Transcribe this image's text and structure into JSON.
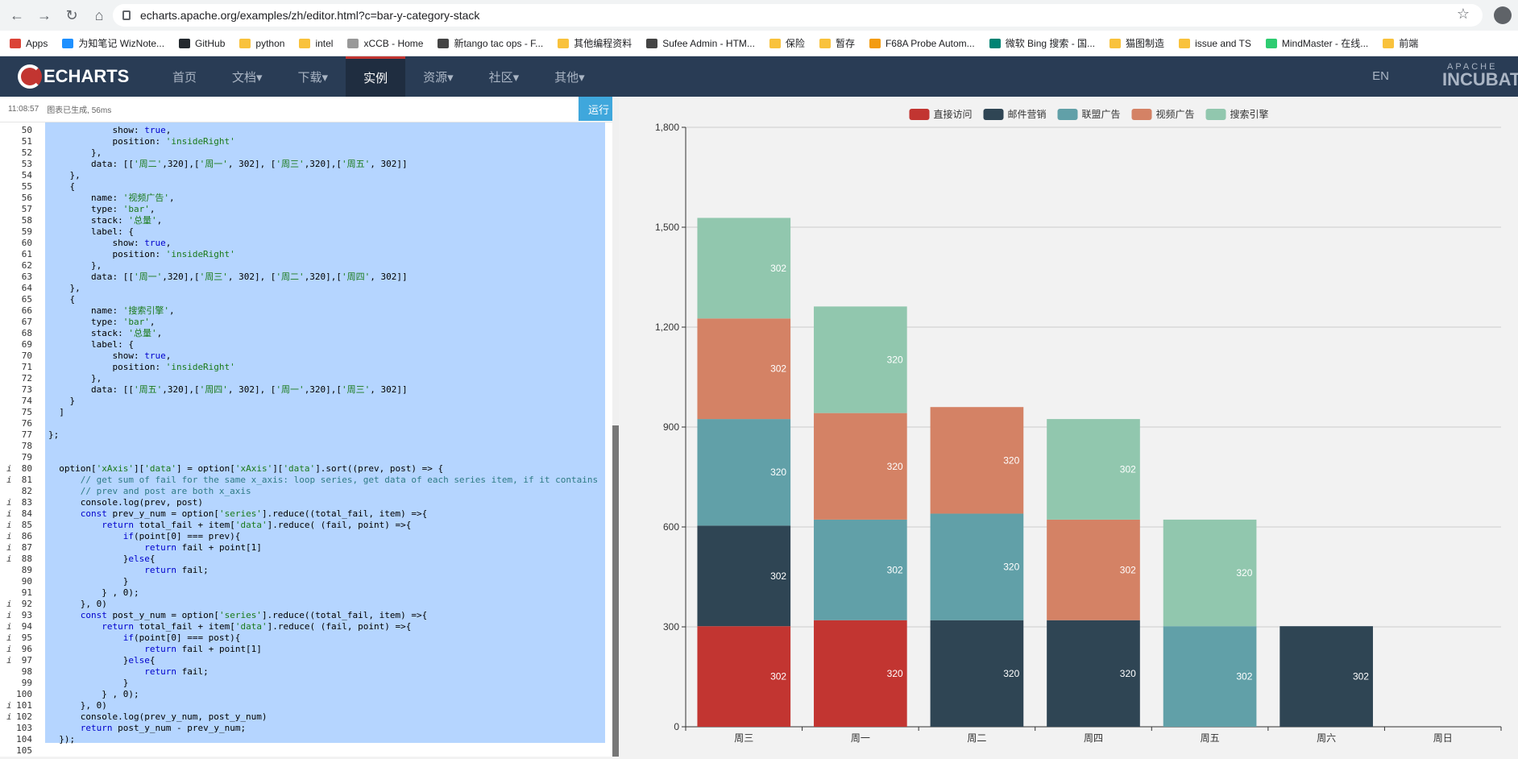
{
  "browser": {
    "url": "echarts.apache.org/examples/zh/editor.html?c=bar-y-category-stack",
    "bookmarks": [
      "Apps",
      "为知笔记 WizNote...",
      "GitHub",
      "python",
      "intel",
      "xCCB - Home",
      "新tango tac ops - F...",
      "其他编程资料",
      "Sufee Admin - HTM...",
      "保险",
      "暂存",
      "F68A Probe Autom...",
      "微软 Bing 搜索 - 国...",
      "猫图制造",
      "issue and TS",
      "MindMaster - 在线...",
      "前端"
    ]
  },
  "site_nav": {
    "logo": "ECHARTS",
    "items": [
      "首页",
      "文档▾",
      "下载▾",
      "实例",
      "资源▾",
      "社区▾",
      "其他▾"
    ],
    "lang": "EN",
    "brand": "INCUBATO",
    "brand_top": "APACHE"
  },
  "editor": {
    "time": "11:08:57",
    "status": "图表已生成, 56ms",
    "run_label": "运行",
    "code_lines": [
      {
        "n": 50,
        "t": "            show: true,"
      },
      {
        "n": 51,
        "t": "            position: 'insideRight'"
      },
      {
        "n": 52,
        "t": "        },"
      },
      {
        "n": 53,
        "t": "        data: [['周二',320],['周一', 302], ['周三',320],['周五', 302]]"
      },
      {
        "n": 54,
        "t": "    },"
      },
      {
        "n": 55,
        "t": "    {"
      },
      {
        "n": 56,
        "t": "        name: '视频广告',"
      },
      {
        "n": 57,
        "t": "        type: 'bar',"
      },
      {
        "n": 58,
        "t": "        stack: '总量',"
      },
      {
        "n": 59,
        "t": "        label: {"
      },
      {
        "n": 60,
        "t": "            show: true,"
      },
      {
        "n": 61,
        "t": "            position: 'insideRight'"
      },
      {
        "n": 62,
        "t": "        },"
      },
      {
        "n": 63,
        "t": "        data: [['周一',320],['周三', 302], ['周二',320],['周四', 302]]"
      },
      {
        "n": 64,
        "t": "    },"
      },
      {
        "n": 65,
        "t": "    {"
      },
      {
        "n": 66,
        "t": "        name: '搜索引擎',"
      },
      {
        "n": 67,
        "t": "        type: 'bar',"
      },
      {
        "n": 68,
        "t": "        stack: '总量',"
      },
      {
        "n": 69,
        "t": "        label: {"
      },
      {
        "n": 70,
        "t": "            show: true,"
      },
      {
        "n": 71,
        "t": "            position: 'insideRight'"
      },
      {
        "n": 72,
        "t": "        },"
      },
      {
        "n": 73,
        "t": "        data: [['周五',320],['周四', 302], ['周一',320],['周三', 302]]"
      },
      {
        "n": 74,
        "t": "    }"
      },
      {
        "n": 75,
        "t": "  ]"
      },
      {
        "n": 76,
        "t": ""
      },
      {
        "n": 77,
        "t": "};"
      },
      {
        "n": 78,
        "t": ""
      },
      {
        "n": 79,
        "t": ""
      },
      {
        "n": 80,
        "t": "  option['xAxis']['data'] = option['xAxis']['data'].sort((prev, post) => {"
      },
      {
        "n": 81,
        "t": "      // get sum of fail for the same x_axis: loop series, get data of each series item, if it contains"
      },
      {
        "n": 82,
        "t": "      // prev and post are both x_axis"
      },
      {
        "n": 83,
        "t": "      console.log(prev, post)"
      },
      {
        "n": 84,
        "t": "      const prev_y_num = option['series'].reduce((total_fail, item) =>{"
      },
      {
        "n": 85,
        "t": "          return total_fail + item['data'].reduce( (fail, point) =>{"
      },
      {
        "n": 86,
        "t": "              if(point[0] === prev){"
      },
      {
        "n": 87,
        "t": "                  return fail + point[1]"
      },
      {
        "n": 88,
        "t": "              }else{"
      },
      {
        "n": 89,
        "t": "                  return fail;"
      },
      {
        "n": 90,
        "t": "              }"
      },
      {
        "n": 91,
        "t": "          } , 0);"
      },
      {
        "n": 92,
        "t": "      }, 0)"
      },
      {
        "n": 93,
        "t": "      const post_y_num = option['series'].reduce((total_fail, item) =>{"
      },
      {
        "n": 94,
        "t": "          return total_fail + item['data'].reduce( (fail, point) =>{"
      },
      {
        "n": 95,
        "t": "              if(point[0] === post){"
      },
      {
        "n": 96,
        "t": "                  return fail + point[1]"
      },
      {
        "n": 97,
        "t": "              }else{"
      },
      {
        "n": 98,
        "t": "                  return fail;"
      },
      {
        "n": 99,
        "t": "              }"
      },
      {
        "n": 100,
        "t": "          } , 0);"
      },
      {
        "n": 101,
        "t": "      }, 0)"
      },
      {
        "n": 102,
        "t": "      console.log(prev_y_num, post_y_num)"
      },
      {
        "n": 103,
        "t": "      return post_y_num - prev_y_num;"
      },
      {
        "n": 104,
        "t": "  });"
      },
      {
        "n": 105,
        "t": ""
      }
    ],
    "info_lines": [
      80,
      81,
      83,
      84,
      85,
      86,
      87,
      88,
      92,
      93,
      94,
      95,
      96,
      97,
      101,
      102
    ]
  },
  "chart_data": {
    "type": "bar",
    "stacked": true,
    "categories": [
      "周三",
      "周一",
      "周二",
      "周四",
      "周五",
      "周六",
      "周日"
    ],
    "ylim": [
      0,
      1800
    ],
    "yticks": [
      0,
      300,
      600,
      900,
      1200,
      1500,
      1800
    ],
    "legend_position": "top",
    "series": [
      {
        "name": "直接访问",
        "color": "#c23531",
        "values": [
          302,
          320,
          null,
          null,
          null,
          null,
          null
        ]
      },
      {
        "name": "邮件营销",
        "color": "#2f4554",
        "values": [
          302,
          null,
          320,
          320,
          null,
          302,
          null
        ]
      },
      {
        "name": "联盟广告",
        "color": "#61a0a8",
        "values": [
          320,
          302,
          320,
          null,
          302,
          null,
          null
        ]
      },
      {
        "name": "视频广告",
        "color": "#d48265",
        "values": [
          302,
          320,
          320,
          302,
          null,
          null,
          null
        ]
      },
      {
        "name": "搜索引擎",
        "color": "#91c7ae",
        "values": [
          302,
          320,
          null,
          302,
          320,
          null,
          null
        ]
      }
    ]
  }
}
